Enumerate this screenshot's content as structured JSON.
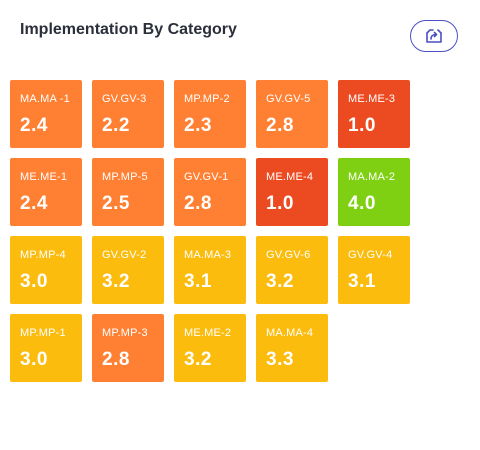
{
  "widget": {
    "title": "Implementation By Category",
    "export_icon": "export-tray-arrow-icon"
  },
  "colors": {
    "orange": "#ff8033",
    "red": "#ec4b22",
    "green": "#7fd012",
    "yellow": "#fbbc0e",
    "accent": "#4b4fc4"
  },
  "tiles": [
    {
      "code": "MA.MA -1",
      "score": "2.4",
      "color": "orange"
    },
    {
      "code": "GV.GV-3",
      "score": "2.2",
      "color": "orange"
    },
    {
      "code": "MP.MP-2",
      "score": "2.3",
      "color": "orange"
    },
    {
      "code": "GV.GV-5",
      "score": "2.8",
      "color": "orange"
    },
    {
      "code": "ME.ME-3",
      "score": "1.0",
      "color": "red"
    },
    {
      "code": "ME.ME-1",
      "score": "2.4",
      "color": "orange"
    },
    {
      "code": "MP.MP-5",
      "score": "2.5",
      "color": "orange"
    },
    {
      "code": "GV.GV-1",
      "score": "2.8",
      "color": "orange"
    },
    {
      "code": "ME.ME-4",
      "score": "1.0",
      "color": "red"
    },
    {
      "code": "MA.MA-2",
      "score": "4.0",
      "color": "green"
    },
    {
      "code": "MP.MP-4",
      "score": "3.0",
      "color": "yellow"
    },
    {
      "code": "GV.GV-2",
      "score": "3.2",
      "color": "yellow"
    },
    {
      "code": "MA.MA-3",
      "score": "3.1",
      "color": "yellow"
    },
    {
      "code": "GV.GV-6",
      "score": "3.2",
      "color": "yellow"
    },
    {
      "code": "GV.GV-4",
      "score": "3.1",
      "color": "yellow"
    },
    {
      "code": "MP.MP-1",
      "score": "3.0",
      "color": "yellow"
    },
    {
      "code": "MP.MP-3",
      "score": "2.8",
      "color": "orange"
    },
    {
      "code": "ME.ME-2",
      "score": "3.2",
      "color": "yellow"
    },
    {
      "code": "MA.MA-4",
      "score": "3.3",
      "color": "yellow"
    }
  ]
}
